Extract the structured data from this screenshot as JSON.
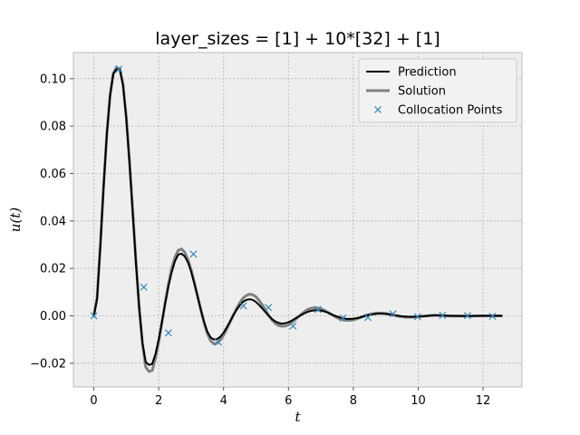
{
  "chart_data": {
    "type": "line",
    "title": "layer_sizes = [1] + 10*[32] + [1]",
    "xlabel": "t",
    "ylabel": "u(t)",
    "xlim": [
      -0.63,
      13.2
    ],
    "ylim": [
      -0.03,
      0.111
    ],
    "xticks": [
      0,
      2,
      4,
      6,
      8,
      10,
      12
    ],
    "yticks": [
      -0.02,
      0.0,
      0.02,
      0.04,
      0.06,
      0.08,
      0.1
    ],
    "ytick_labels": [
      "−0.02",
      "0.00",
      "0.02",
      "0.04",
      "0.06",
      "0.08",
      "0.10"
    ],
    "grid": true,
    "legend_position": "top-right",
    "series": [
      {
        "name": "Prediction",
        "kind": "line",
        "color": "#000000",
        "x": [
          0.0,
          0.1,
          0.2,
          0.3,
          0.4,
          0.5,
          0.6,
          0.7,
          0.8,
          0.9,
          1.0,
          1.1,
          1.2,
          1.3,
          1.4,
          1.5,
          1.6,
          1.7,
          1.8,
          1.9,
          2.0,
          2.1,
          2.2,
          2.3,
          2.4,
          2.5,
          2.6,
          2.7,
          2.8,
          2.9,
          3.0,
          3.1,
          3.2,
          3.3,
          3.4,
          3.5,
          3.6,
          3.7,
          3.8,
          3.9,
          4.0,
          4.1,
          4.2,
          4.3,
          4.4,
          4.5,
          4.6,
          4.7,
          4.8,
          4.9,
          5.0,
          5.1,
          5.2,
          5.3,
          5.4,
          5.5,
          5.6,
          5.7,
          5.8,
          5.9,
          6.0,
          6.1,
          6.2,
          6.3,
          6.4,
          6.5,
          6.6,
          6.7,
          6.8,
          6.9,
          7.0,
          7.1,
          7.2,
          7.3,
          7.4,
          7.5,
          7.6,
          7.7,
          7.8,
          7.9,
          8.0,
          8.1,
          8.2,
          8.3,
          8.4,
          8.5,
          8.6,
          8.7,
          8.8,
          8.9,
          9.0,
          9.1,
          9.2,
          9.3,
          9.4,
          9.5,
          9.6,
          9.7,
          9.8,
          9.9,
          10.0,
          10.5,
          11.0,
          11.5,
          12.0,
          12.57
        ],
        "y": [
          0.0,
          0.0071,
          0.0294,
          0.0543,
          0.0764,
          0.0928,
          0.102,
          0.104,
          0.104,
          0.0972,
          0.0832,
          0.0643,
          0.0431,
          0.0219,
          0.003,
          -0.0114,
          -0.0195,
          -0.0207,
          -0.0203,
          -0.0161,
          -0.0099,
          -0.0025,
          0.0053,
          0.0124,
          0.0184,
          0.023,
          0.0258,
          0.0262,
          0.0251,
          0.0226,
          0.0186,
          0.0135,
          0.008,
          0.0025,
          -0.0026,
          -0.0067,
          -0.0091,
          -0.01,
          -0.0098,
          -0.0088,
          -0.0071,
          -0.0048,
          -0.0023,
          0.0002,
          0.0025,
          0.0044,
          0.0059,
          0.0067,
          0.007,
          0.0067,
          0.0058,
          0.0045,
          0.003,
          0.0014,
          -0.0001,
          -0.0014,
          -0.0024,
          -0.003,
          -0.0033,
          -0.0031,
          -0.0027,
          -0.002,
          -0.0012,
          -0.0004,
          0.0004,
          0.0011,
          0.0017,
          0.0021,
          0.0023,
          0.0024,
          0.0022,
          0.0019,
          0.0014,
          0.0008,
          0.0002,
          -0.0003,
          -0.0008,
          -0.0011,
          -0.0013,
          -0.0013,
          -0.0012,
          -0.001,
          -0.0007,
          -0.0003,
          0.0001,
          0.0004,
          0.0006,
          0.0008,
          0.0009,
          0.0009,
          0.0008,
          0.0006,
          0.0004,
          0.0002,
          0.0,
          -0.0002,
          -0.0003,
          -0.0004,
          -0.0004,
          -0.0004,
          -0.0003,
          0.0002,
          0.0,
          -0.0001,
          0.0,
          0.0
        ]
      },
      {
        "name": "Solution",
        "kind": "line",
        "color": "#808080",
        "x": [
          0.0,
          0.1,
          0.2,
          0.3,
          0.4,
          0.5,
          0.6,
          0.7,
          0.8,
          0.9,
          1.0,
          1.1,
          1.2,
          1.3,
          1.4,
          1.5,
          1.6,
          1.7,
          1.8,
          1.9,
          2.0,
          2.1,
          2.2,
          2.3,
          2.4,
          2.5,
          2.6,
          2.7,
          2.8,
          2.9,
          3.0,
          3.1,
          3.2,
          3.3,
          3.4,
          3.5,
          3.6,
          3.7,
          3.8,
          3.9,
          4.0,
          4.1,
          4.2,
          4.3,
          4.4,
          4.5,
          4.6,
          4.7,
          4.8,
          4.9,
          5.0,
          5.1,
          5.2,
          5.3,
          5.4,
          5.5,
          5.6,
          5.7,
          5.8,
          5.9,
          6.0,
          6.1,
          6.2,
          6.3,
          6.4,
          6.5,
          6.6,
          6.7,
          6.8,
          6.9,
          7.0,
          7.1,
          7.2,
          7.3,
          7.4,
          7.5,
          7.6,
          7.7,
          7.8,
          7.9,
          8.0,
          8.1,
          8.2,
          8.3,
          8.4,
          8.5,
          8.6,
          8.7,
          8.8,
          8.9,
          9.0,
          9.1,
          9.2,
          9.3,
          9.4,
          9.5,
          9.6,
          9.7,
          9.8,
          9.9,
          10.0,
          10.5,
          11.0,
          11.5,
          12.0,
          12.57
        ],
        "y": [
          0.0,
          0.0077,
          0.0298,
          0.0546,
          0.0766,
          0.0929,
          0.1022,
          0.1048,
          0.1041,
          0.0976,
          0.0838,
          0.0651,
          0.044,
          0.0225,
          0.0031,
          -0.0121,
          -0.0216,
          -0.0235,
          -0.023,
          -0.0179,
          -0.011,
          -0.0028,
          0.0056,
          0.0135,
          0.02,
          0.0247,
          0.0276,
          0.0282,
          0.0268,
          0.0238,
          0.0194,
          0.014,
          0.0082,
          0.0024,
          -0.003,
          -0.0076,
          -0.0105,
          -0.0118,
          -0.0115,
          -0.0102,
          -0.0082,
          -0.0056,
          -0.0027,
          0.0003,
          0.0031,
          0.0055,
          0.0074,
          0.0086,
          0.0091,
          0.0089,
          0.008,
          0.0064,
          0.0045,
          0.0022,
          0.0,
          -0.0019,
          -0.0033,
          -0.0041,
          -0.0044,
          -0.0043,
          -0.0038,
          -0.0029,
          -0.0017,
          -0.0005,
          0.0007,
          0.0018,
          0.0027,
          0.0032,
          0.0034,
          0.0033,
          0.003,
          0.0024,
          0.0016,
          0.0008,
          -0.0001,
          -0.0008,
          -0.0014,
          -0.0018,
          -0.0019,
          -0.0019,
          -0.0017,
          -0.0013,
          -0.0008,
          -0.0003,
          0.0002,
          0.0006,
          0.0009,
          0.0011,
          0.0012,
          0.0011,
          0.001,
          0.0007,
          0.0004,
          0.0001,
          -0.0002,
          -0.0004,
          -0.0006,
          -0.0006,
          -0.0006,
          -0.0005,
          -0.0004,
          0.0003,
          -0.0001,
          -0.0001,
          0.0,
          0.0
        ]
      },
      {
        "name": "Collocation Points",
        "kind": "scatter",
        "marker": "x",
        "color": "#348ABD",
        "x": [
          0.0,
          0.77,
          1.54,
          2.3,
          3.07,
          3.84,
          4.61,
          5.38,
          6.14,
          6.91,
          7.68,
          8.45,
          9.22,
          9.98,
          10.75,
          11.52,
          12.29
        ],
        "y": [
          0.0,
          0.104,
          0.0121,
          -0.0072,
          0.026,
          -0.0111,
          0.0042,
          0.0035,
          -0.0043,
          0.0027,
          -0.0009,
          -0.0007,
          0.0008,
          -0.0004,
          0.0002,
          0.0001,
          -0.0002
        ]
      }
    ]
  }
}
